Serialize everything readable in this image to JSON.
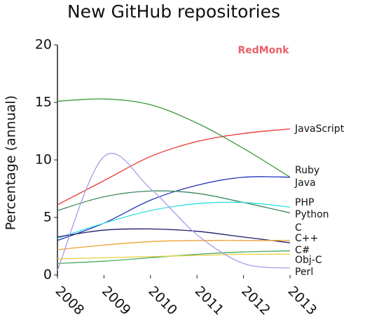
{
  "chart_data": {
    "type": "line",
    "title": "New GitHub repositories",
    "brand": "RedMonk",
    "y_label": "Percentage (annual)",
    "x": [
      2008,
      2009,
      2010,
      2011,
      2012,
      2013
    ],
    "xlim": [
      2008,
      2013
    ],
    "xticks": [
      2008,
      2009,
      2010,
      2011,
      2012,
      2013
    ],
    "ylim": [
      0,
      20
    ],
    "yticks": [
      0,
      5,
      10,
      15,
      20
    ],
    "series": [
      {
        "name": "JavaScript",
        "color": "#e8342c",
        "values": [
          6.1,
          8.2,
          10.3,
          11.6,
          12.3,
          12.7
        ]
      },
      {
        "name": "Ruby",
        "color": "#3a9a3a",
        "values": [
          15.1,
          15.3,
          14.8,
          13.2,
          11.0,
          8.5
        ]
      },
      {
        "name": "Java",
        "color": "#2233bb",
        "values": [
          3.0,
          4.5,
          6.5,
          7.8,
          8.5,
          8.5
        ]
      },
      {
        "name": "PHP",
        "color": "#3a8a5a",
        "values": [
          5.6,
          6.8,
          7.3,
          7.1,
          6.3,
          5.4
        ]
      },
      {
        "name": "Python",
        "color": "#33dddd",
        "values": [
          3.2,
          4.5,
          5.6,
          6.2,
          6.3,
          5.9
        ]
      },
      {
        "name": "C",
        "color": "#1a1a6a",
        "values": [
          3.3,
          3.9,
          4.0,
          3.8,
          3.3,
          2.8
        ]
      },
      {
        "name": "C++",
        "color": "#f0a030",
        "values": [
          2.2,
          2.6,
          2.9,
          3.0,
          3.0,
          3.0
        ]
      },
      {
        "name": "C#",
        "color": "#44aa66",
        "values": [
          1.0,
          1.2,
          1.5,
          1.8,
          2.0,
          2.1
        ]
      },
      {
        "name": "Obj-C",
        "color": "#e8d040",
        "values": [
          1.4,
          1.5,
          1.6,
          1.7,
          1.8,
          1.8
        ]
      },
      {
        "name": "Perl",
        "color": "#a99be8",
        "values": [
          0.4,
          10.3,
          7.5,
          3.5,
          1.0,
          0.6
        ]
      }
    ]
  }
}
